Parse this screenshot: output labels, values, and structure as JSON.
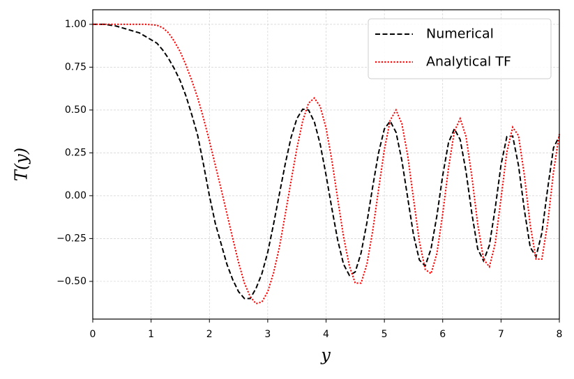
{
  "chart_data": {
    "type": "line",
    "x_label": "y",
    "y_label": "T(y)",
    "x": [
      0,
      0.1,
      0.2,
      0.3,
      0.4,
      0.5,
      0.6,
      0.7,
      0.8,
      0.9,
      1,
      1.1,
      1.2,
      1.3,
      1.4,
      1.5,
      1.6,
      1.7,
      1.8,
      1.9,
      2,
      2.1,
      2.2,
      2.3,
      2.4,
      2.5,
      2.6,
      2.7,
      2.8,
      2.9,
      3,
      3.1,
      3.2,
      3.3,
      3.4,
      3.5,
      3.6,
      3.7,
      3.8,
      3.9,
      4,
      4.1,
      4.2,
      4.3,
      4.4,
      4.5,
      4.6,
      4.7,
      4.8,
      4.9,
      5,
      5.1,
      5.2,
      5.3,
      5.4,
      5.5,
      5.6,
      5.7,
      5.8,
      5.9,
      6,
      6.1,
      6.2,
      6.3,
      6.4,
      6.5,
      6.6,
      6.7,
      6.8,
      6.9,
      7,
      7.1,
      7.2,
      7.3,
      7.4,
      7.5,
      7.6,
      7.7,
      7.8,
      7.9,
      8
    ],
    "series": [
      {
        "name": "Numerical",
        "color": "#000000",
        "dash": "dashed",
        "values": [
          1,
          1,
          1,
          0.995,
          0.99,
          0.98,
          0.97,
          0.96,
          0.95,
          0.93,
          0.91,
          0.89,
          0.85,
          0.8,
          0.74,
          0.67,
          0.58,
          0.47,
          0.35,
          0.18,
          0,
          -0.16,
          -0.28,
          -0.4,
          -0.49,
          -0.56,
          -0.6,
          -0.6,
          -0.54,
          -0.455,
          -0.33,
          -0.166,
          0.01,
          0.185,
          0.34,
          0.45,
          0.505,
          0.5,
          0.43,
          0.3,
          0.12,
          -0.075,
          -0.26,
          -0.4,
          -0.465,
          -0.445,
          -0.335,
          -0.158,
          0.053,
          0.25,
          0.39,
          0.435,
          0.37,
          0.205,
          -0.013,
          -0.23,
          -0.375,
          -0.41,
          -0.31,
          -0.118,
          0.118,
          0.31,
          0.39,
          0.327,
          0.14,
          -0.104,
          -0.31,
          -0.38,
          -0.29,
          -0.074,
          0.18,
          0.345,
          0.348,
          0.176,
          -0.083,
          -0.3,
          -0.356,
          -0.218,
          0.042,
          0.28,
          0.347
        ]
      },
      {
        "name": "Analytical TF",
        "color": "#ff0000",
        "dash": "dotted",
        "values": [
          1,
          1,
          1,
          1,
          1,
          1,
          1,
          1,
          1,
          1,
          0.998,
          0.995,
          0.98,
          0.95,
          0.9,
          0.84,
          0.76,
          0.67,
          0.57,
          0.45,
          0.32,
          0.18,
          0.04,
          -0.105,
          -0.25,
          -0.39,
          -0.51,
          -0.59,
          -0.63,
          -0.62,
          -0.56,
          -0.45,
          -0.3,
          -0.11,
          0.086,
          0.277,
          0.437,
          0.54,
          0.57,
          0.52,
          0.395,
          0.205,
          -0.02,
          -0.24,
          -0.41,
          -0.51,
          -0.51,
          -0.4,
          -0.205,
          0.036,
          0.27,
          0.44,
          0.5,
          0.42,
          0.234,
          -0.02,
          -0.266,
          -0.43,
          -0.455,
          -0.337,
          -0.106,
          0.163,
          0.376,
          0.45,
          0.345,
          0.112,
          -0.165,
          -0.37,
          -0.415,
          -0.28,
          -0.015,
          0.255,
          0.4,
          0.35,
          0.12,
          -0.17,
          -0.37,
          -0.37,
          -0.16,
          0.14,
          0.36
        ]
      }
    ],
    "xlim": [
      0,
      8
    ],
    "ylim": [
      -0.72,
      1.085
    ],
    "xticks": [
      0,
      1,
      2,
      3,
      4,
      5,
      6,
      7,
      8
    ],
    "yticks": [
      {
        "value": -0.5,
        "label": "−0.50"
      },
      {
        "value": -0.25,
        "label": "−0.25"
      },
      {
        "value": 0,
        "label": "0.00"
      },
      {
        "value": 0.25,
        "label": "0.25"
      },
      {
        "value": 0.5,
        "label": "0.50"
      },
      {
        "value": 0.75,
        "label": "0.75"
      },
      {
        "value": 1,
        "label": "1.00"
      }
    ],
    "grid": true,
    "legend_position": "upper-right"
  }
}
